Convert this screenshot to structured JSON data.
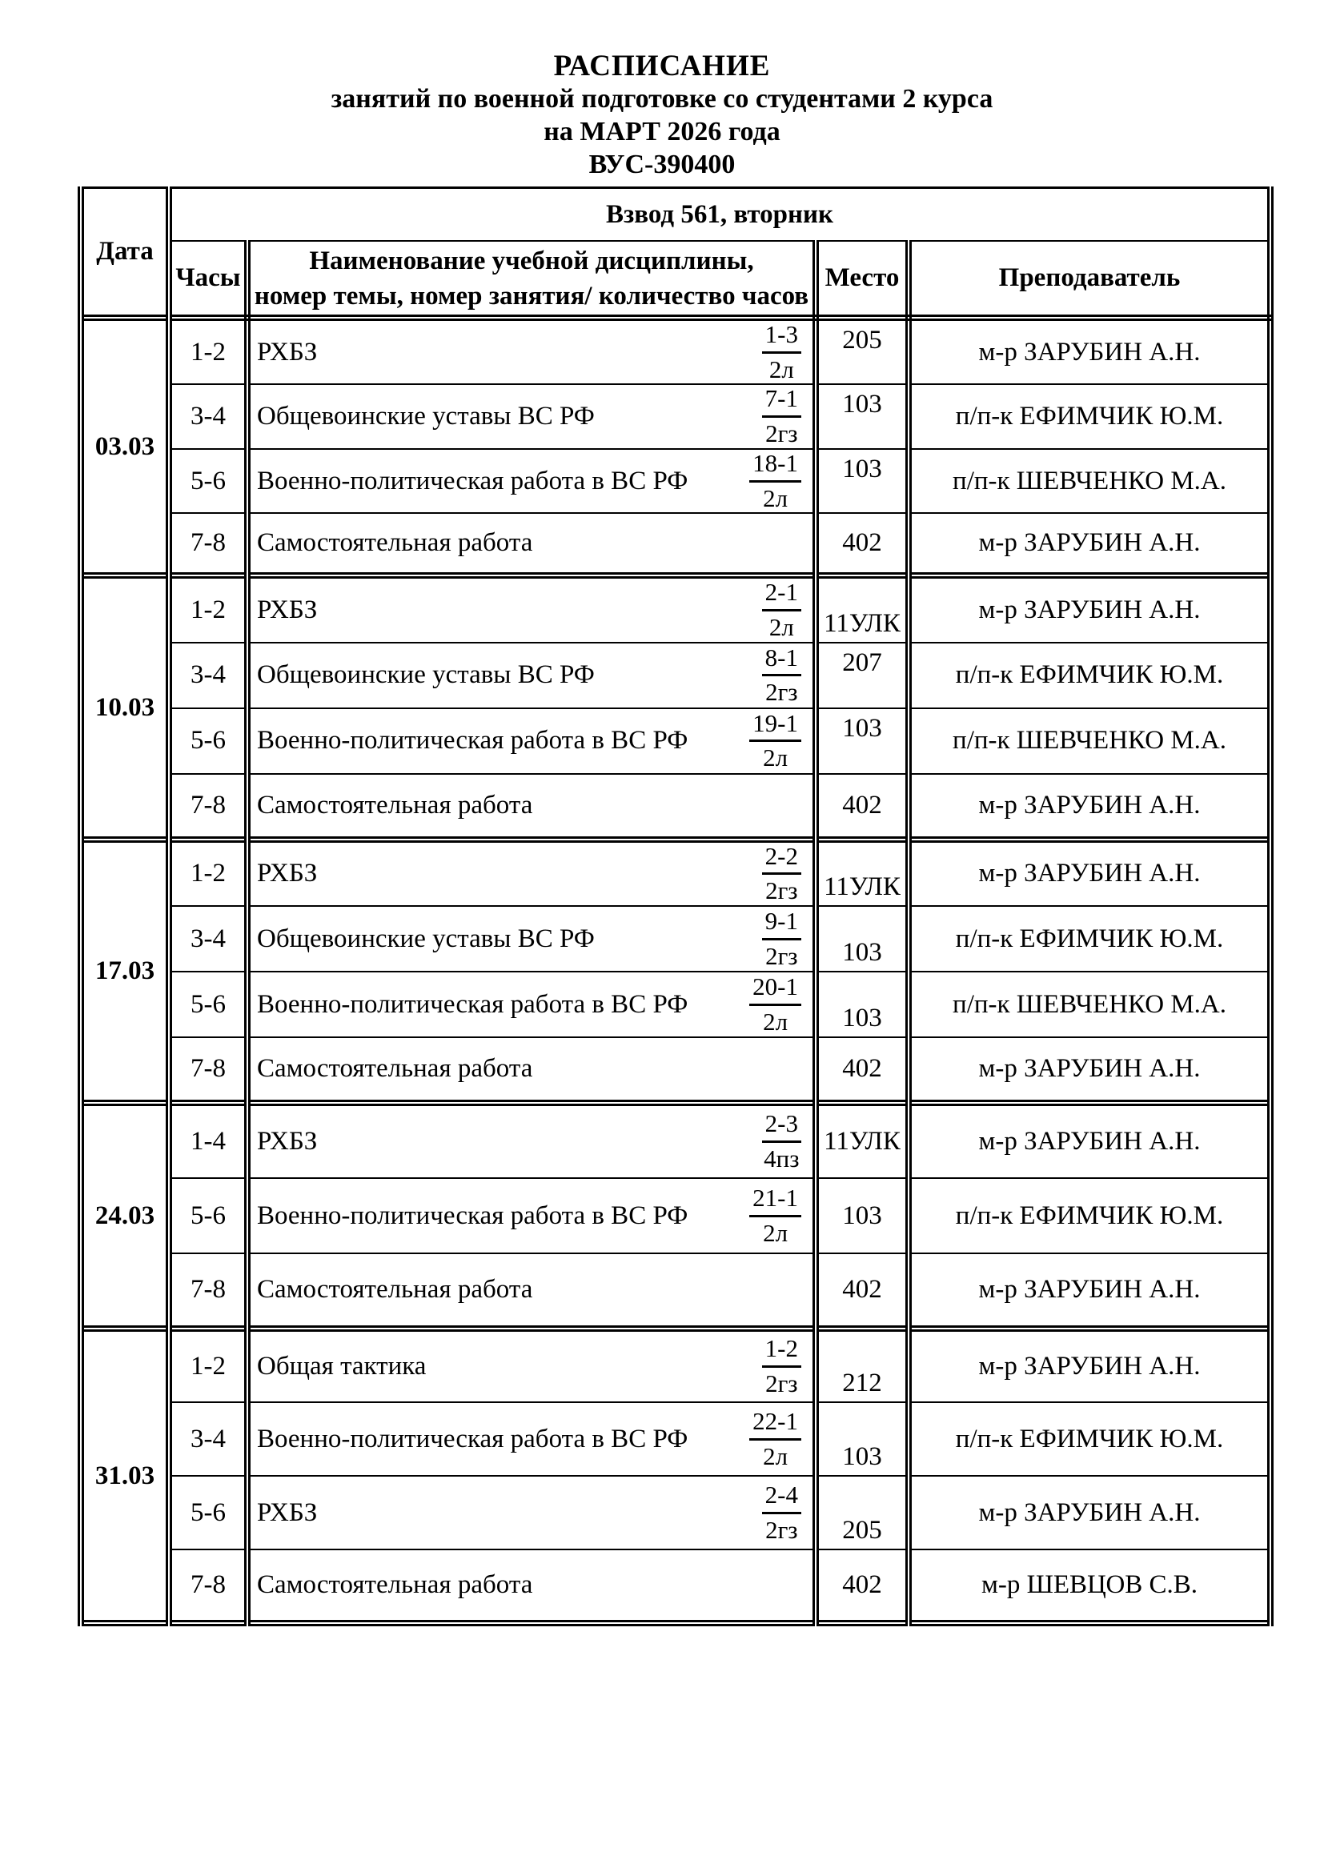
{
  "colors": {
    "page_background": "#ffffff",
    "text": "#000000",
    "border": "#000000"
  },
  "title": {
    "lines": [
      "РАСПИСАНИЕ",
      "занятий по военной подготовке со студентами 2 курса",
      "на МАРТ 2026 года",
      "ВУС-390400"
    ]
  },
  "table": {
    "group_header": "Взвод 561, вторник",
    "headers": {
      "date": "Дата",
      "hours": "Часы",
      "discipline_line1": "Наименование учебной дисциплины,",
      "discipline_line2": "номер темы, номер занятия/ количество часов",
      "place": "Место",
      "teacher": "Преподаватель"
    },
    "blocks": [
      {
        "date": "03.03",
        "rows": [
          {
            "hours": "1-2",
            "discipline": "РХБЗ",
            "topic": "1-3",
            "volume": "2л",
            "place": "205",
            "place_valign": "top",
            "teacher": "м-р ЗАРУБИН А.Н."
          },
          {
            "hours": "3-4",
            "discipline": "Общевоинские уставы ВС РФ",
            "topic": "7-1",
            "volume": "2гз",
            "place": "103",
            "place_valign": "top",
            "teacher": "п/п-к ЕФИМЧИК Ю.М."
          },
          {
            "hours": "5-6",
            "discipline": "Военно-политическая работа в ВС РФ",
            "topic": "18-1",
            "volume": "2л",
            "place": "103",
            "place_valign": "top",
            "teacher": "п/п-к ШЕВЧЕНКО М.А."
          },
          {
            "hours": "7-8",
            "discipline": "Самостоятельная работа",
            "topic": null,
            "volume": null,
            "place": "402",
            "place_valign": "middle",
            "teacher": "м-р ЗАРУБИН А.Н."
          }
        ]
      },
      {
        "date": "10.03",
        "rows": [
          {
            "hours": "1-2",
            "discipline": "РХБЗ",
            "topic": "2-1",
            "volume": "2л",
            "place": "11УЛК",
            "place_valign": "bottom",
            "teacher": "м-р ЗАРУБИН А.Н."
          },
          {
            "hours": "3-4",
            "discipline": "Общевоинские уставы ВС РФ",
            "topic": "8-1",
            "volume": "2гз",
            "place": "207",
            "place_valign": "top",
            "teacher": "п/п-к ЕФИМЧИК Ю.М."
          },
          {
            "hours": "5-6",
            "discipline": "Военно-политическая работа в ВС РФ",
            "topic": "19-1",
            "volume": "2л",
            "place": "103",
            "place_valign": "top",
            "teacher": "п/п-к ШЕВЧЕНКО М.А."
          },
          {
            "hours": "7-8",
            "discipline": "Самостоятельная работа",
            "topic": null,
            "volume": null,
            "place": "402",
            "place_valign": "middle",
            "teacher": "м-р ЗАРУБИН А.Н."
          }
        ]
      },
      {
        "date": "17.03",
        "rows": [
          {
            "hours": "1-2",
            "discipline": "РХБЗ",
            "topic": "2-2",
            "volume": "2гз",
            "place": "11УЛК",
            "place_valign": "bottom",
            "teacher": "м-р ЗАРУБИН А.Н."
          },
          {
            "hours": "3-4",
            "discipline": "Общевоинские уставы ВС РФ",
            "topic": "9-1",
            "volume": "2гз",
            "place": "103",
            "place_valign": "bottom",
            "teacher": "п/п-к ЕФИМЧИК Ю.М."
          },
          {
            "hours": "5-6",
            "discipline": "Военно-политическая работа в ВС РФ",
            "topic": "20-1",
            "volume": "2л",
            "place": "103",
            "place_valign": "bottom",
            "teacher": "п/п-к ШЕВЧЕНКО М.А."
          },
          {
            "hours": "7-8",
            "discipline": "Самостоятельная работа",
            "topic": null,
            "volume": null,
            "place": "402",
            "place_valign": "middle",
            "teacher": "м-р ЗАРУБИН А.Н."
          }
        ]
      },
      {
        "date": "24.03",
        "rows": [
          {
            "hours": "1-4",
            "discipline": "РХБЗ",
            "topic": "2-3",
            "volume": "4пз",
            "place": "11УЛК",
            "place_valign": "middle",
            "teacher": "м-р ЗАРУБИН А.Н."
          },
          {
            "hours": "5-6",
            "discipline": "Военно-политическая работа в ВС РФ",
            "topic": "21-1",
            "volume": "2л",
            "place": "103",
            "place_valign": "middle",
            "teacher": "п/п-к ЕФИМЧИК Ю.М."
          },
          {
            "hours": "7-8",
            "discipline": "Самостоятельная работа",
            "topic": null,
            "volume": null,
            "place": "402",
            "place_valign": "middle",
            "teacher": "м-р ЗАРУБИН А.Н."
          }
        ]
      },
      {
        "date": "31.03",
        "rows": [
          {
            "hours": "1-2",
            "discipline": "Общая тактика",
            "topic": "1-2",
            "volume": "2гз",
            "place": "212",
            "place_valign": "bottom",
            "teacher": "м-р ЗАРУБИН А.Н."
          },
          {
            "hours": "3-4",
            "discipline": "Военно-политическая работа в ВС РФ",
            "topic": "22-1",
            "volume": "2л",
            "place": "103",
            "place_valign": "bottom",
            "teacher": "п/п-к ЕФИМЧИК Ю.М."
          },
          {
            "hours": "5-6",
            "discipline": "РХБЗ",
            "topic": "2-4",
            "volume": "2гз",
            "place": "205",
            "place_valign": "bottom",
            "teacher": "м-р ЗАРУБИН А.Н."
          },
          {
            "hours": "7-8",
            "discipline": "Самостоятельная работа",
            "topic": null,
            "volume": null,
            "place": "402",
            "place_valign": "middle",
            "teacher": "м-р ШЕВЦОВ С.В."
          }
        ]
      }
    ]
  }
}
